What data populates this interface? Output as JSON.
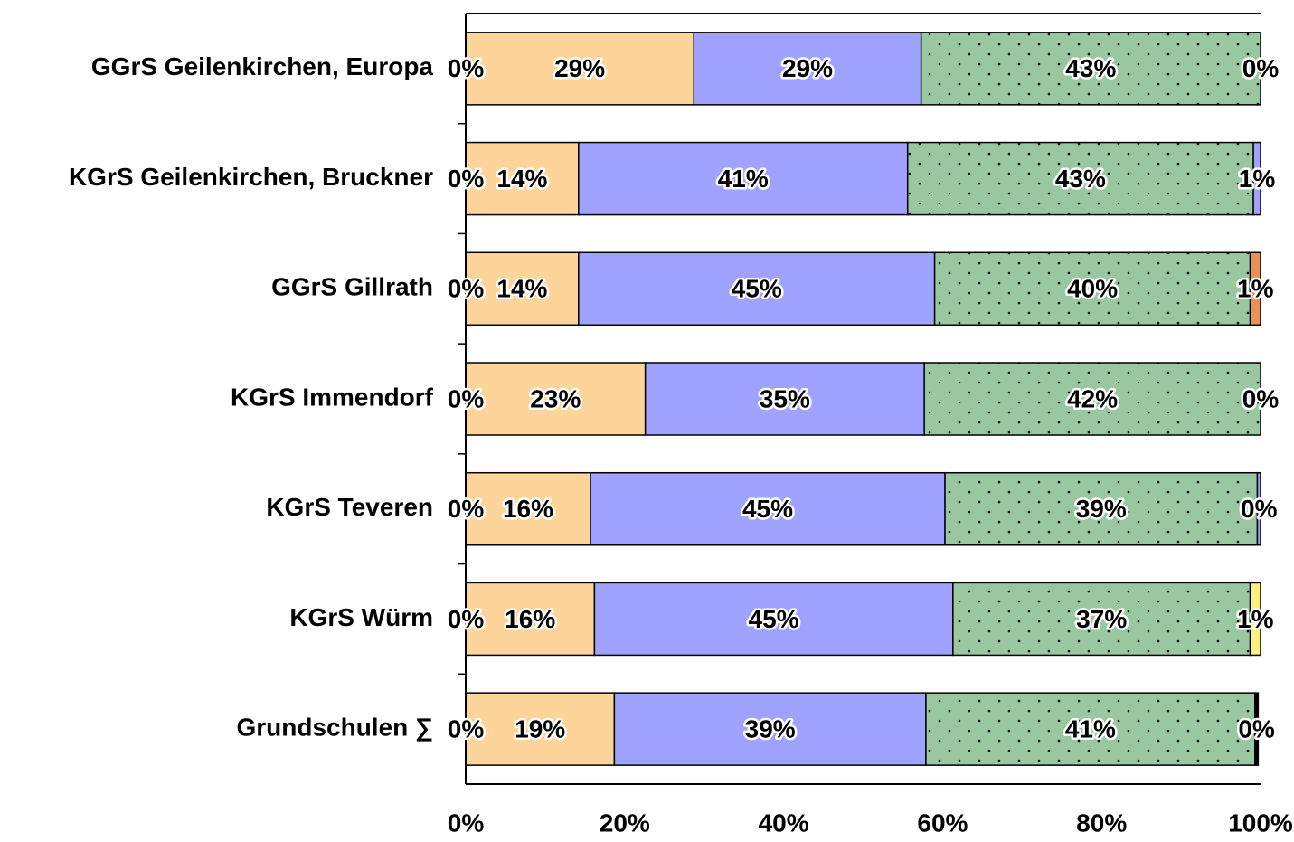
{
  "chart_data": {
    "type": "stacked-bar-horizontal",
    "categories": [
      "GGrS Geilenkirchen, Europa",
      "KGrS Geilenkirchen, Bruckner",
      "GGrS Gillrath",
      "KGrS Immendorf",
      "KGrS Teveren",
      "KGrS Würm",
      "Grundschulen ∑"
    ],
    "series": [
      {
        "color": "#fdd49a",
        "values": [
          0,
          0,
          0,
          0,
          0,
          0,
          0
        ],
        "value_labels": [
          "0%",
          "0%",
          "0%",
          "0%",
          "0%",
          "0%",
          "0%"
        ]
      },
      {
        "color": "#fdd49a",
        "values": [
          28.7,
          14.2,
          14.2,
          22.6,
          15.7,
          16.2,
          18.7
        ],
        "value_labels": [
          "29%",
          "14%",
          "14%",
          "23%",
          "16%",
          "16%",
          "19%"
        ]
      },
      {
        "color": "#9fa3ff",
        "values": [
          28.6,
          41.4,
          44.8,
          35.1,
          44.6,
          45.1,
          39.2
        ],
        "value_labels": [
          "29%",
          "41%",
          "45%",
          "35%",
          "45%",
          "45%",
          "39%"
        ]
      },
      {
        "color": "#99c79f",
        "pattern": "dots",
        "values": [
          42.7,
          43.5,
          39.7,
          42.3,
          39.3,
          37.4,
          41.4
        ],
        "value_labels": [
          "43%",
          "43%",
          "40%",
          "42%",
          "39%",
          "37%",
          "41%"
        ]
      },
      {
        "colors": [
          "#9fa3ff",
          "#9fa3ff",
          "#e8925a",
          "#9fa3ff",
          "#9fa3ff",
          "#fff080",
          "#000000"
        ],
        "values": [
          0,
          0.9,
          1.3,
          0,
          0.4,
          1.3,
          0.4
        ],
        "value_labels": [
          "0%",
          "1%",
          "1%",
          "0%",
          "0%",
          "1%",
          "0%"
        ]
      }
    ],
    "xlim": [
      0,
      100
    ],
    "xticks": [
      {
        "value": 0,
        "label": "0%"
      },
      {
        "value": 20,
        "label": "20%"
      },
      {
        "value": 40,
        "label": "40%"
      },
      {
        "value": 60,
        "label": "60%"
      },
      {
        "value": 80,
        "label": "80%"
      },
      {
        "value": 100,
        "label": "100%"
      }
    ],
    "grid": true
  }
}
